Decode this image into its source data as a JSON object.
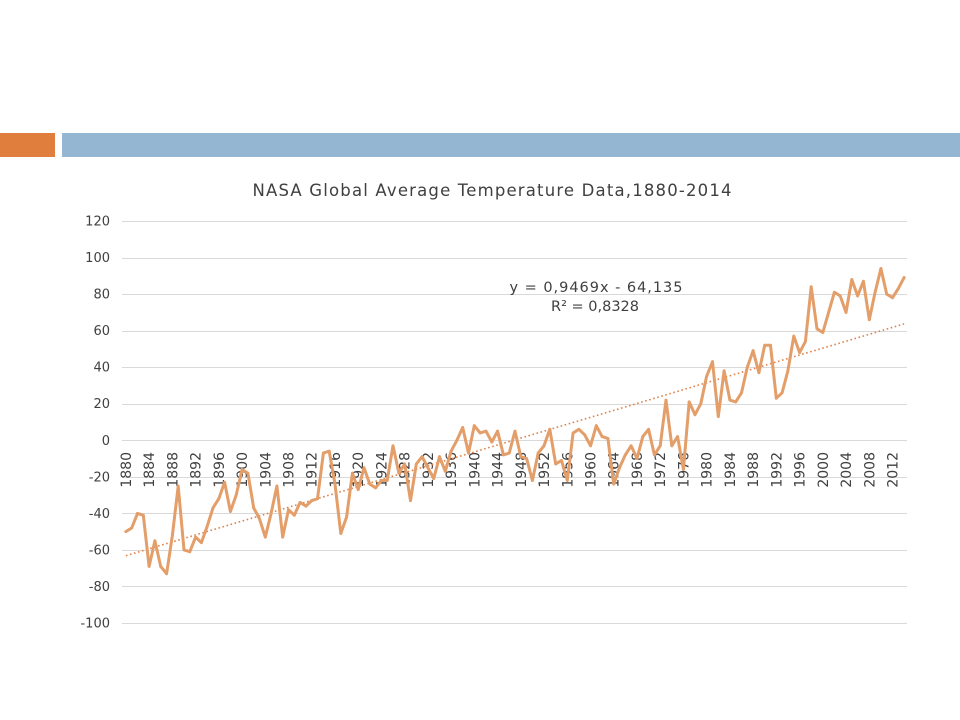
{
  "slide": {
    "accent_color": "#E07E3E",
    "bar_color": "#94B6D2"
  },
  "chart_data": {
    "type": "line",
    "title": "NASA Global Average Temperature Data,1880-2014",
    "xlabel": "",
    "ylabel": "",
    "ylim": [
      -100,
      120
    ],
    "y_ticks": [
      120,
      100,
      80,
      60,
      40,
      20,
      0,
      -20,
      -40,
      -60,
      -80,
      -100
    ],
    "grid": "horizontal",
    "legend": "none",
    "x": [
      1880,
      1881,
      1882,
      1883,
      1884,
      1885,
      1886,
      1887,
      1888,
      1889,
      1890,
      1891,
      1892,
      1893,
      1894,
      1895,
      1896,
      1897,
      1898,
      1899,
      1900,
      1901,
      1902,
      1903,
      1904,
      1905,
      1906,
      1907,
      1908,
      1909,
      1910,
      1911,
      1912,
      1913,
      1914,
      1915,
      1916,
      1917,
      1918,
      1919,
      1920,
      1921,
      1922,
      1923,
      1924,
      1925,
      1926,
      1927,
      1928,
      1929,
      1930,
      1931,
      1932,
      1933,
      1934,
      1935,
      1936,
      1937,
      1938,
      1939,
      1940,
      1941,
      1942,
      1943,
      1944,
      1945,
      1946,
      1947,
      1948,
      1949,
      1950,
      1951,
      1952,
      1953,
      1954,
      1955,
      1956,
      1957,
      1958,
      1959,
      1960,
      1961,
      1962,
      1963,
      1964,
      1965,
      1966,
      1967,
      1968,
      1969,
      1970,
      1971,
      1972,
      1973,
      1974,
      1975,
      1976,
      1977,
      1978,
      1979,
      1980,
      1981,
      1982,
      1983,
      1984,
      1985,
      1986,
      1987,
      1988,
      1989,
      1990,
      1991,
      1992,
      1993,
      1994,
      1995,
      1996,
      1997,
      1998,
      1999,
      2000,
      2001,
      2002,
      2003,
      2004,
      2005,
      2006,
      2007,
      2008,
      2009,
      2010,
      2011,
      2012,
      2013,
      2014
    ],
    "x_tick_labels": [
      "1880",
      "1884",
      "1888",
      "1892",
      "1896",
      "1900",
      "1904",
      "1908",
      "1912",
      "1916",
      "1920",
      "1924",
      "1928",
      "1932",
      "1936",
      "1940",
      "1944",
      "1948",
      "1952",
      "1956",
      "1960",
      "1964",
      "1968",
      "1972",
      "1976",
      "1980",
      "1984",
      "1988",
      "1992",
      "1996",
      "2000",
      "2004",
      "2008",
      "2012"
    ],
    "series": [
      {
        "color": "#E39E69",
        "values": [
          -50,
          -48,
          -40,
          -41,
          -69,
          -55,
          -69,
          -73,
          -52,
          -25,
          -60,
          -61,
          -53,
          -56,
          -47,
          -37,
          -32,
          -23,
          -39,
          -30,
          -16,
          -18,
          -37,
          -43,
          -53,
          -40,
          -25,
          -53,
          -38,
          -41,
          -34,
          -36,
          -33,
          -32,
          -7,
          -6,
          -24,
          -51,
          -42,
          -18,
          -27,
          -15,
          -24,
          -26,
          -22,
          -22,
          -3,
          -18,
          -13,
          -33,
          -13,
          -9,
          -15,
          -21,
          -9,
          -17,
          -6,
          0,
          7,
          -7,
          8,
          4,
          5,
          -1,
          5,
          -8,
          -7,
          5,
          -9,
          -10,
          -22,
          -7,
          -3,
          6,
          -13,
          -11,
          -22,
          4,
          6,
          3,
          -3,
          8,
          2,
          1,
          -24,
          -15,
          -8,
          -3,
          -10,
          2,
          6,
          -8,
          -3,
          22,
          -3,
          2,
          -16,
          21,
          14,
          20,
          35,
          43,
          13,
          38,
          22,
          21,
          26,
          40,
          49,
          37,
          52,
          52,
          23,
          26,
          38,
          57,
          48,
          54,
          84,
          61,
          59,
          70,
          81,
          79,
          70,
          88,
          79,
          87,
          66,
          81,
          94,
          80,
          78,
          83,
          89
        ]
      }
    ],
    "trendline": {
      "type": "linear",
      "style": "dotted",
      "color": "#E0834A",
      "slope": 0.9469,
      "intercept": -64.135,
      "equation": "y = 0,9469x - 64,135",
      "r_squared": "R² = 0,8328"
    }
  }
}
